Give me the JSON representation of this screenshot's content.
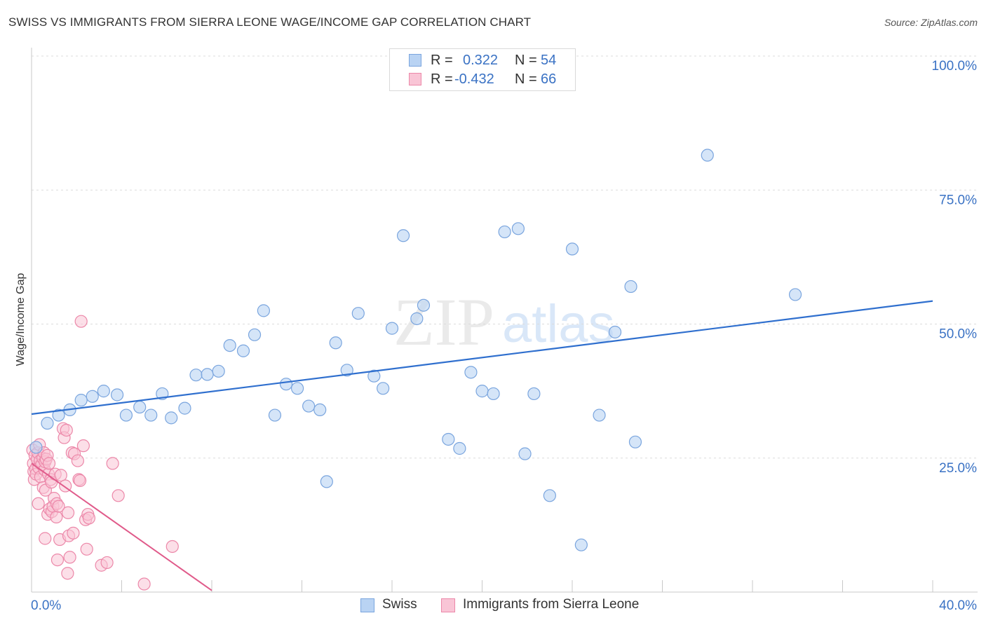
{
  "title": "SWISS VS IMMIGRANTS FROM SIERRA LEONE WAGE/INCOME GAP CORRELATION CHART",
  "source": "Source: ZipAtlas.com",
  "watermark": {
    "zip": "ZIP",
    "atlas": "atlas"
  },
  "colors": {
    "swiss_fill": "#b9d3f3",
    "swiss_stroke": "#7aa5de",
    "swiss_line": "#2f6fce",
    "sl_fill": "#f9c5d6",
    "sl_stroke": "#ec88a9",
    "sl_line": "#e05a8a",
    "axis_text": "#3a72c4",
    "grid": "#dcdcdc"
  },
  "legend": {
    "rows": [
      {
        "r_label": "R =",
        "r_value": "0.322",
        "n_label": "N =",
        "n_value": "54"
      },
      {
        "r_label": "R =",
        "r_value": "-0.432",
        "n_label": "N =",
        "n_value": "66"
      }
    ]
  },
  "bottom_legend": {
    "swiss": "Swiss",
    "sierra_leone": "Immigrants from Sierra Leone"
  },
  "chart_data": {
    "type": "scatter",
    "title": "SWISS VS IMMIGRANTS FROM SIERRA LEONE WAGE/INCOME GAP CORRELATION CHART",
    "xlabel": "",
    "ylabel": "Wage/Income Gap",
    "xlim": [
      0,
      40
    ],
    "ylim": [
      0,
      102
    ],
    "x_tick_labels": [
      "0.0%",
      "40.0%"
    ],
    "y_ticks": [
      {
        "value": 25,
        "label": "25.0%"
      },
      {
        "value": 50,
        "label": "50.0%"
      },
      {
        "value": 75,
        "label": "75.0%"
      },
      {
        "value": 100,
        "label": "100.0%"
      }
    ],
    "grid": true,
    "series": [
      {
        "name": "Swiss",
        "R": 0.322,
        "N": 54,
        "trend": {
          "x": [
            0,
            40
          ],
          "y": [
            33.2,
            54.3
          ]
        },
        "points": [
          [
            0.2,
            27.0
          ],
          [
            0.7,
            31.5
          ],
          [
            1.2,
            33.0
          ],
          [
            1.7,
            34.0
          ],
          [
            2.2,
            35.8
          ],
          [
            2.7,
            36.5
          ],
          [
            3.2,
            37.5
          ],
          [
            3.8,
            36.8
          ],
          [
            4.2,
            33.0
          ],
          [
            4.8,
            34.5
          ],
          [
            5.3,
            33.0
          ],
          [
            5.8,
            37.0
          ],
          [
            6.2,
            32.5
          ],
          [
            6.8,
            34.3
          ],
          [
            7.3,
            40.5
          ],
          [
            7.8,
            40.6
          ],
          [
            8.3,
            41.2
          ],
          [
            8.8,
            46.0
          ],
          [
            9.4,
            45.0
          ],
          [
            9.9,
            48.0
          ],
          [
            10.3,
            52.5
          ],
          [
            10.8,
            33.0
          ],
          [
            11.3,
            38.8
          ],
          [
            11.8,
            38.0
          ],
          [
            12.3,
            34.7
          ],
          [
            12.8,
            34.0
          ],
          [
            13.1,
            20.6
          ],
          [
            13.5,
            46.5
          ],
          [
            14.0,
            41.4
          ],
          [
            14.5,
            52.0
          ],
          [
            15.2,
            40.3
          ],
          [
            15.6,
            38.0
          ],
          [
            16.0,
            49.2
          ],
          [
            16.5,
            66.5
          ],
          [
            17.1,
            51.0
          ],
          [
            17.4,
            53.5
          ],
          [
            18.5,
            28.5
          ],
          [
            19.0,
            26.8
          ],
          [
            19.5,
            41.0
          ],
          [
            20.0,
            37.5
          ],
          [
            20.5,
            37.0
          ],
          [
            21.0,
            67.2
          ],
          [
            21.6,
            67.8
          ],
          [
            21.9,
            25.8
          ],
          [
            22.3,
            37.0
          ],
          [
            23.0,
            18.0
          ],
          [
            24.0,
            64.0
          ],
          [
            24.4,
            8.8
          ],
          [
            25.2,
            33.0
          ],
          [
            25.9,
            48.5
          ],
          [
            26.6,
            57.0
          ],
          [
            26.8,
            28.0
          ],
          [
            30.0,
            81.5
          ],
          [
            33.9,
            55.5
          ]
        ]
      },
      {
        "name": "Immigrants from Sierra Leone",
        "R": -0.432,
        "N": 66,
        "trend": {
          "x": [
            0,
            8.0
          ],
          "y": [
            24.0,
            0.3
          ]
        },
        "points": [
          [
            0.05,
            26.5
          ],
          [
            0.08,
            24.0
          ],
          [
            0.1,
            22.5
          ],
          [
            0.12,
            21.0
          ],
          [
            0.15,
            25.5
          ],
          [
            0.18,
            23.0
          ],
          [
            0.2,
            22.0
          ],
          [
            0.25,
            24.8
          ],
          [
            0.28,
            26.0
          ],
          [
            0.3,
            16.5
          ],
          [
            0.32,
            23.2
          ],
          [
            0.35,
            27.5
          ],
          [
            0.38,
            24.5
          ],
          [
            0.4,
            21.5
          ],
          [
            0.45,
            23.8
          ],
          [
            0.5,
            25.0
          ],
          [
            0.52,
            19.5
          ],
          [
            0.55,
            26.0
          ],
          [
            0.58,
            22.8
          ],
          [
            0.6,
            24.3
          ],
          [
            0.62,
            19.0
          ],
          [
            0.65,
            24.8
          ],
          [
            0.7,
            25.5
          ],
          [
            0.72,
            14.5
          ],
          [
            0.75,
            22.0
          ],
          [
            0.78,
            24.0
          ],
          [
            0.8,
            15.5
          ],
          [
            0.85,
            21.0
          ],
          [
            0.88,
            20.5
          ],
          [
            0.9,
            15.0
          ],
          [
            0.95,
            16.0
          ],
          [
            1.0,
            17.5
          ],
          [
            1.05,
            22.0
          ],
          [
            1.1,
            14.0
          ],
          [
            1.12,
            16.5
          ],
          [
            1.15,
            6.0
          ],
          [
            1.2,
            16.0
          ],
          [
            1.25,
            9.8
          ],
          [
            1.3,
            21.8
          ],
          [
            1.4,
            30.5
          ],
          [
            1.45,
            28.8
          ],
          [
            1.5,
            19.8
          ],
          [
            1.55,
            30.2
          ],
          [
            1.6,
            3.5
          ],
          [
            1.62,
            14.8
          ],
          [
            1.65,
            10.5
          ],
          [
            1.7,
            6.5
          ],
          [
            1.8,
            26.0
          ],
          [
            1.85,
            11.0
          ],
          [
            1.9,
            25.8
          ],
          [
            2.05,
            24.5
          ],
          [
            2.1,
            21.0
          ],
          [
            2.15,
            20.8
          ],
          [
            2.3,
            27.3
          ],
          [
            2.4,
            13.5
          ],
          [
            2.45,
            8.0
          ],
          [
            2.5,
            14.5
          ],
          [
            2.55,
            13.8
          ],
          [
            3.1,
            5.0
          ],
          [
            3.35,
            5.5
          ],
          [
            3.6,
            24.0
          ],
          [
            3.85,
            18.0
          ],
          [
            5.0,
            1.5
          ],
          [
            6.25,
            8.5
          ],
          [
            0.6,
            10.0
          ],
          [
            2.2,
            50.5
          ]
        ]
      }
    ]
  }
}
